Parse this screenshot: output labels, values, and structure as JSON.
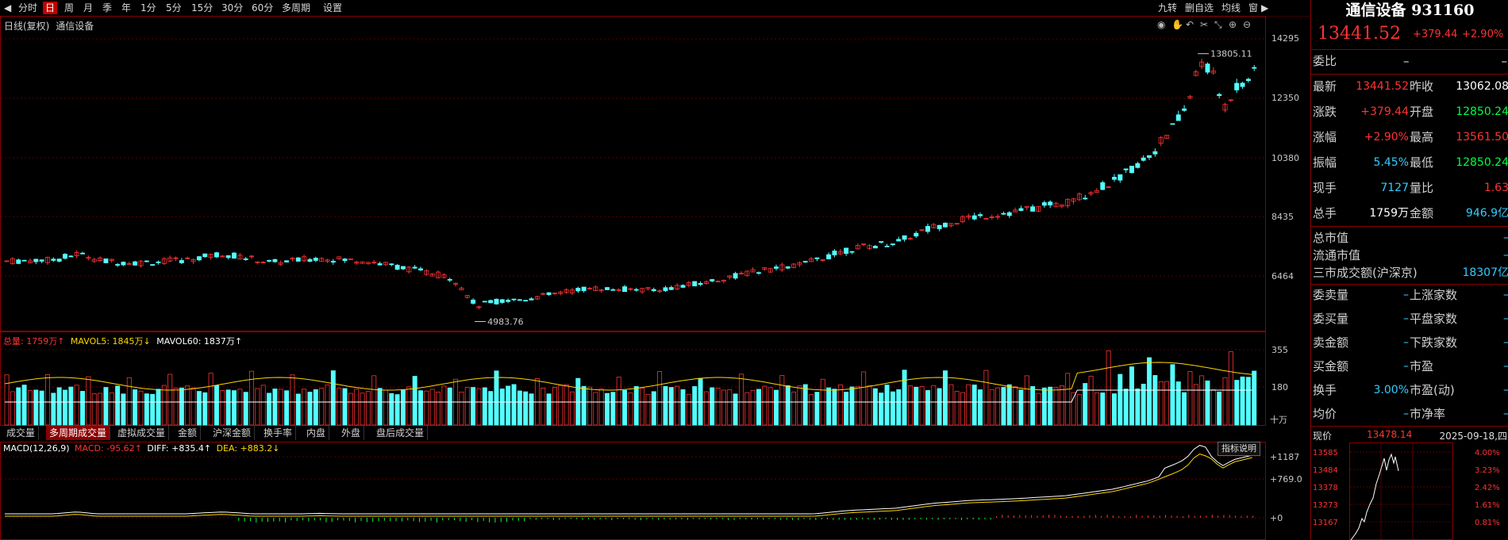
{
  "toolbar": {
    "left_items": [
      "分时",
      "日",
      "周",
      "月",
      "季",
      "年",
      "1分",
      "5分",
      "15分",
      "30分",
      "60分",
      "多周期",
      "设置"
    ],
    "active": "日",
    "right_items": [
      "九转",
      "删自选",
      "均线",
      "窗"
    ]
  },
  "chart": {
    "header_left": "日线(复权)",
    "header_name": "通信设备",
    "price_axis": [
      "14295",
      "12350",
      "10380",
      "8435",
      "6464"
    ],
    "high_label": "13805.11",
    "low_label": "4983.76",
    "volume_legend": {
      "total": "总量: 1759万↑",
      "mavol5": "MAVOL5: 1845万↓",
      "mavol60": "MAVOL60: 1837万↑"
    },
    "volume_axis": [
      "355",
      "180"
    ],
    "volume_unit": "十万",
    "macd_legend": {
      "name": "MACD(12,26,9)",
      "macd": "MACD: -95.62↑",
      "diff": "DIFF: +835.4↑",
      "dea": "DEA: +883.2↓"
    },
    "macd_axis": [
      "+1187",
      "+769.0",
      "+0"
    ],
    "indicator_btn": "指标说明",
    "colors": {
      "up": "#ff3333",
      "down": "#54ffff",
      "ma1": "#ffffff",
      "ma2": "#ffd700",
      "frame": "#8b0000"
    }
  },
  "tabs": [
    "成交量",
    "多周期成交量",
    "虚拟成交量",
    "金额",
    "沪深金额",
    "换手率",
    "内盘",
    "外盘",
    "盘后成交量"
  ],
  "active_tab": "多周期成交量",
  "panel": {
    "title": "通信设备 931160",
    "price": "13441.52",
    "change": "+379.44",
    "change_pct": "+2.90%",
    "weibi_label": "委比",
    "weibi_v1": "–",
    "weibi_v2": "–",
    "rows": [
      {
        "l1": "最新",
        "v1": "13441.52",
        "c1": "red",
        "l2": "昨收",
        "v2": "13062.08",
        "c2": "white"
      },
      {
        "l1": "涨跌",
        "v1": "+379.44",
        "c1": "red",
        "l2": "开盘",
        "v2": "12850.24",
        "c2": "green"
      },
      {
        "l1": "涨幅",
        "v1": "+2.90%",
        "c1": "red",
        "l2": "最高",
        "v2": "13561.50",
        "c2": "red"
      },
      {
        "l1": "振幅",
        "v1": "5.45%",
        "c1": "cyan",
        "l2": "最低",
        "v2": "12850.24",
        "c2": "green"
      },
      {
        "l1": "现手",
        "v1": "7127",
        "c1": "cyan",
        "l2": "量比",
        "v2": "1.63",
        "c2": "red"
      },
      {
        "l1": "总手",
        "v1": "1759万",
        "c1": "white",
        "l2": "金额",
        "v2": "946.9亿",
        "c2": "cyan"
      }
    ],
    "mkt": [
      {
        "l": "总市值",
        "v": "–"
      },
      {
        "l": "流通市值",
        "v": "–"
      },
      {
        "l": "三市成交额(沪深京)",
        "v": "18307亿"
      }
    ],
    "rows2": [
      {
        "l1": "委卖量",
        "v1": "–",
        "l2": "上涨家数",
        "v2": "–"
      },
      {
        "l1": "委买量",
        "v1": "–",
        "l2": "平盘家数",
        "v2": "–"
      },
      {
        "l1": "卖金额",
        "v1": "–",
        "l2": "下跌家数",
        "v2": "–"
      },
      {
        "l1": "买金额",
        "v1": "–",
        "l2": "市盈",
        "v2": "–"
      },
      {
        "l1": "换手",
        "v1": "3.00%",
        "l2": "市盈(动)",
        "v2": "–"
      },
      {
        "l1": "均价",
        "v1": "–",
        "l2": "市净率",
        "v2": "–"
      }
    ],
    "mini": {
      "label": "现价",
      "price": "13478.14",
      "date": "2025-09-18,四",
      "left_axis": [
        "13585",
        "13484",
        "13378",
        "13273",
        "13167"
      ],
      "right_axis": [
        "4.00%",
        "3.23%",
        "2.42%",
        "1.61%",
        "0.81%"
      ]
    }
  }
}
